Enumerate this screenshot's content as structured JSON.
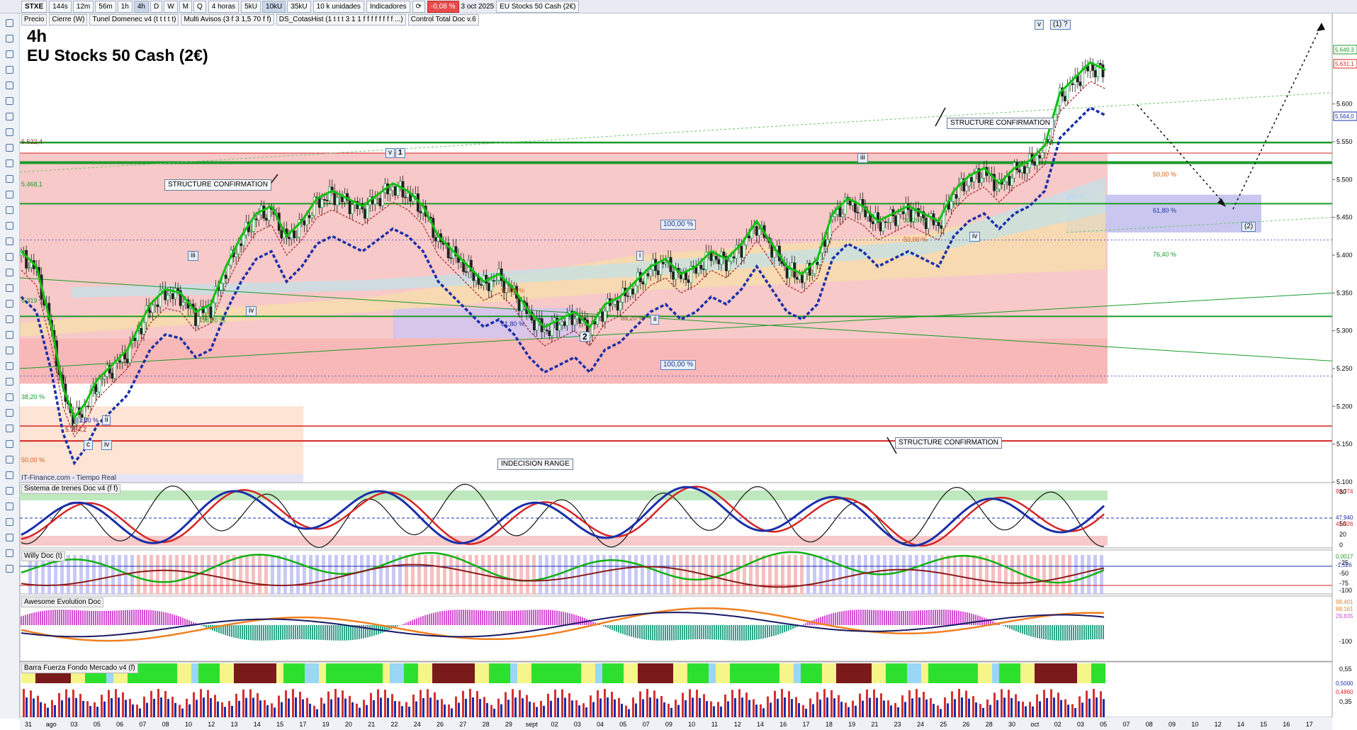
{
  "toolbar": {
    "symbol": "STXE",
    "timeframes": [
      "144s",
      "12m",
      "56m",
      "1h",
      "4h",
      "D",
      "W",
      "M",
      "Q"
    ],
    "active_timeframe": "4h",
    "period": "4 horas",
    "volume_buttons": [
      "5kU",
      "10kU",
      "35kU"
    ],
    "units": "10 k unidades",
    "indicators_label": "Indicadores",
    "change": "-0,08 %",
    "date": "3 oct 2025",
    "instrument": "EU Stocks 50 Cash (2€)"
  },
  "indicator_tabs": [
    "Precio",
    "Cierre (W)",
    "Tunel Domenec v4 (t t t t t)",
    "Multi Avisos (3 f 3 1,5 70 f f)",
    "DS_CotasHist (1 t t t 3 1 1 f f f f f f f f ...)",
    "Control Total Doc v.6"
  ],
  "chart_title": "4h",
  "chart_subtitle": "EU Stocks 50 Cash (2€)",
  "source_text": "IT-Finance.com - Tiempo Real",
  "annotations": {
    "structure_1": "STRUCTURE CONFIRMATION",
    "structure_2": "STRUCTURE CONFIRMATION",
    "structure_3": "STRUCTURE CONFIRMATION",
    "indecision": "INDECISION RANGE",
    "pct_100_a": "100,00 %",
    "pct_100_b": "100,00 %",
    "fib_618": "61,80 %",
    "fib_50": "50,00 %",
    "fib_382": "38,20 %",
    "fib_50_b": "50,00 %",
    "fib_882": "88,20 %",
    "fib_618_c": "61,80 %",
    "fib_50_right": "50,00 %",
    "fib_618_right": "61,80 %",
    "fib_764_right": "76,40 %",
    "fib_382_mid": "38,20 %",
    "fib_50_mid": "50,00 %",
    "fib_382_left": "38,20 %",
    "fib_50_left": "50,00 %",
    "level_5522": "5.522,4",
    "level_5468": "5.468,1",
    "level_5319": "5.319",
    "level_5154": "5.154,2"
  },
  "elliott": {
    "v_top": "v",
    "one": "1",
    "iii_a": "iii",
    "iv_a": "iv",
    "two": "2",
    "i_a": "i",
    "ii_a": "ii",
    "iii_b": "iii",
    "iv_b": "iv",
    "v_b": "v",
    "one_paren": "(1) ?",
    "two_paren": "(2)",
    "c": "c",
    "iv_c": "iv",
    "ii_c": "ii"
  },
  "panes": {
    "p1": "Sistema de trenes Doc v4 (f f)",
    "p2": "Willy Doc (t)",
    "p3": "Awesome Evolution Doc",
    "p4": "Barra Fuerza Fondo Mercado v4 (f)"
  },
  "right_axis_tags": {
    "price_1": "5.649,3",
    "price_2": "5.631,1",
    "price_3": "5.564,0",
    "p1_a": "92,774",
    "p1_b": "47,940",
    "p1_c": "41,526",
    "p2_a": "0,0017",
    "p2_b": "-1,526",
    "p3_a": "98,401",
    "p3_b": "88,161",
    "p3_c": "29,835",
    "p4_a": "0,5000",
    "p4_b": "0,4860"
  },
  "chart_data": {
    "type": "candlestick",
    "ylim": [
      5100,
      5700
    ],
    "y_ticks": [
      "5.600",
      "5.550",
      "5.500",
      "5.450",
      "5.400",
      "5.350",
      "5.300",
      "5.250",
      "5.200",
      "5.150",
      "5.100"
    ],
    "x_ticks": [
      "31",
      "ago",
      "03",
      "05",
      "06",
      "07",
      "08",
      "10",
      "12",
      "13",
      "14",
      "15",
      "17",
      "19",
      "20",
      "21",
      "22",
      "24",
      "26",
      "27",
      "28",
      "29",
      "sept",
      "02",
      "03",
      "04",
      "05",
      "07",
      "09",
      "10",
      "11",
      "12",
      "14",
      "16",
      "17",
      "18",
      "19",
      "21",
      "23",
      "24",
      "25",
      "26",
      "28",
      "30",
      "oct",
      "02",
      "03",
      "05",
      "07",
      "08",
      "09",
      "10",
      "12",
      "14",
      "15",
      "16",
      "17"
    ],
    "key_levels": [
      5522.4,
      5468.1,
      5319,
      5154.2,
      5549,
      5174
    ],
    "close_path": [
      [
        0,
        5400
      ],
      [
        4,
        5380
      ],
      [
        8,
        5300
      ],
      [
        11,
        5220
      ],
      [
        14,
        5180
      ],
      [
        17,
        5200
      ],
      [
        20,
        5230
      ],
      [
        24,
        5250
      ],
      [
        28,
        5270
      ],
      [
        31,
        5300
      ],
      [
        34,
        5330
      ],
      [
        38,
        5350
      ],
      [
        42,
        5345
      ],
      [
        46,
        5320
      ],
      [
        50,
        5330
      ],
      [
        54,
        5380
      ],
      [
        58,
        5420
      ],
      [
        62,
        5450
      ],
      [
        66,
        5460
      ],
      [
        70,
        5420
      ],
      [
        74,
        5440
      ],
      [
        78,
        5470
      ],
      [
        82,
        5480
      ],
      [
        86,
        5470
      ],
      [
        90,
        5460
      ],
      [
        94,
        5475
      ],
      [
        98,
        5490
      ],
      [
        102,
        5480
      ],
      [
        106,
        5460
      ],
      [
        110,
        5420
      ],
      [
        114,
        5400
      ],
      [
        118,
        5380
      ],
      [
        122,
        5360
      ],
      [
        126,
        5370
      ],
      [
        130,
        5350
      ],
      [
        134,
        5320
      ],
      [
        138,
        5300
      ],
      [
        142,
        5310
      ],
      [
        146,
        5320
      ],
      [
        150,
        5300
      ],
      [
        154,
        5330
      ],
      [
        158,
        5340
      ],
      [
        162,
        5360
      ],
      [
        166,
        5380
      ],
      [
        170,
        5390
      ],
      [
        174,
        5370
      ],
      [
        178,
        5380
      ],
      [
        182,
        5400
      ],
      [
        186,
        5390
      ],
      [
        190,
        5410
      ],
      [
        194,
        5440
      ],
      [
        198,
        5410
      ],
      [
        202,
        5380
      ],
      [
        206,
        5370
      ],
      [
        210,
        5390
      ],
      [
        214,
        5450
      ],
      [
        218,
        5470
      ],
      [
        222,
        5460
      ],
      [
        226,
        5440
      ],
      [
        230,
        5450
      ],
      [
        234,
        5460
      ],
      [
        238,
        5450
      ],
      [
        242,
        5440
      ],
      [
        246,
        5480
      ],
      [
        250,
        5500
      ],
      [
        254,
        5510
      ],
      [
        258,
        5490
      ],
      [
        262,
        5510
      ],
      [
        266,
        5520
      ],
      [
        270,
        5540
      ],
      [
        274,
        5610
      ],
      [
        278,
        5630
      ],
      [
        282,
        5650
      ],
      [
        286,
        5640
      ]
    ]
  },
  "sub_axis": {
    "p1": [
      "80",
      "50",
      "20",
      "0"
    ],
    "p2": [
      "-25",
      "-50",
      "-75",
      "-100"
    ],
    "p3": [
      "-100"
    ],
    "p4": [
      "0,55",
      "0,35"
    ]
  }
}
